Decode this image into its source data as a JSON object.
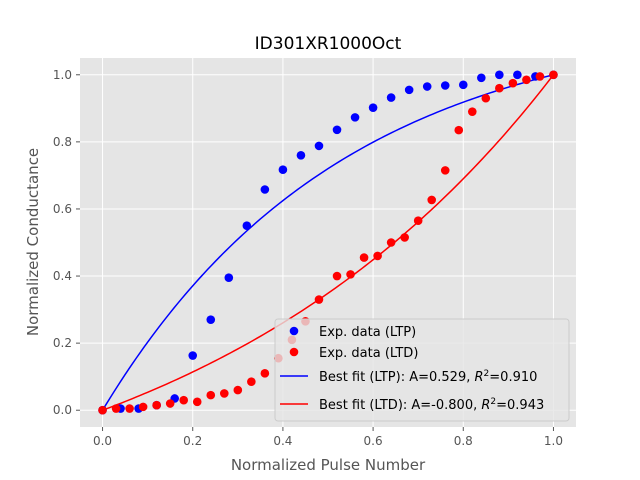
{
  "chart_data": {
    "type": "scatter",
    "title": "ID301XR1000Oct",
    "xlabel": "Normalized Pulse Number",
    "ylabel": "Normalized Conductance",
    "xlim": [
      -0.05,
      1.05
    ],
    "ylim": [
      -0.05,
      1.05
    ],
    "xticks": [
      0.0,
      0.2,
      0.4,
      0.6,
      0.8,
      1.0
    ],
    "yticks": [
      0.0,
      0.2,
      0.4,
      0.6,
      0.8,
      1.0
    ],
    "xtick_labels": [
      "0.0",
      "0.2",
      "0.4",
      "0.6",
      "0.8",
      "1.0"
    ],
    "ytick_labels": [
      "0.0",
      "0.2",
      "0.4",
      "0.6",
      "0.8",
      "1.0"
    ],
    "grid": true,
    "style": "ggplot",
    "legend_placement": "lower-right",
    "colors": {
      "background": "#e5e5e5",
      "grid": "#ffffff",
      "ltp": "#0000ff",
      "ltd": "#ff0000"
    },
    "series": [
      {
        "name": "Exp. data (LTP)",
        "kind": "scatter",
        "color": "#0000ff",
        "x": [
          0.0,
          0.04,
          0.08,
          0.12,
          0.16,
          0.2,
          0.24,
          0.28,
          0.32,
          0.36,
          0.4,
          0.44,
          0.48,
          0.52,
          0.56,
          0.6,
          0.64,
          0.68,
          0.72,
          0.76,
          0.8,
          0.84,
          0.88,
          0.92,
          0.96,
          1.0
        ],
        "y": [
          0.0,
          0.005,
          0.005,
          0.015,
          0.035,
          0.163,
          0.27,
          0.395,
          0.55,
          0.658,
          0.717,
          0.76,
          0.788,
          0.836,
          0.873,
          0.902,
          0.932,
          0.955,
          0.965,
          0.968,
          0.97,
          0.991,
          1.0,
          1.0,
          0.995,
          1.0
        ]
      },
      {
        "name": "Exp. data (LTD)",
        "kind": "scatter",
        "color": "#ff0000",
        "x": [
          0.0,
          0.03,
          0.06,
          0.09,
          0.12,
          0.15,
          0.18,
          0.21,
          0.24,
          0.27,
          0.3,
          0.33,
          0.36,
          0.39,
          0.42,
          0.45,
          0.48,
          0.52,
          0.55,
          0.58,
          0.61,
          0.64,
          0.67,
          0.7,
          0.73,
          0.76,
          0.79,
          0.82,
          0.85,
          0.88,
          0.91,
          0.94,
          0.97,
          1.0
        ],
        "y": [
          0.0,
          0.005,
          0.005,
          0.01,
          0.015,
          0.02,
          0.03,
          0.025,
          0.045,
          0.05,
          0.06,
          0.085,
          0.11,
          0.155,
          0.21,
          0.265,
          0.33,
          0.4,
          0.405,
          0.455,
          0.46,
          0.5,
          0.515,
          0.565,
          0.627,
          0.715,
          0.835,
          0.89,
          0.93,
          0.96,
          0.975,
          0.985,
          0.995,
          1.0
        ]
      },
      {
        "name": "Best fit (LTP): A=0.529, $R^2$=0.910",
        "legend_main": "Best fit (LTP): A=0.529, ",
        "legend_r": "R",
        "legend_sup": "2",
        "legend_tail": "=0.910",
        "kind": "line",
        "color": "#0000ff",
        "A": 0.529,
        "R2": 0.91
      },
      {
        "name": "Best fit (LTD): A=-0.800, $R^2$=0.943",
        "legend_main": "Best fit (LTD): A=-0.800, ",
        "legend_r": "R",
        "legend_sup": "2",
        "legend_tail": "=0.943",
        "kind": "line",
        "color": "#ff0000",
        "A": -0.8,
        "R2": 0.943
      }
    ]
  }
}
